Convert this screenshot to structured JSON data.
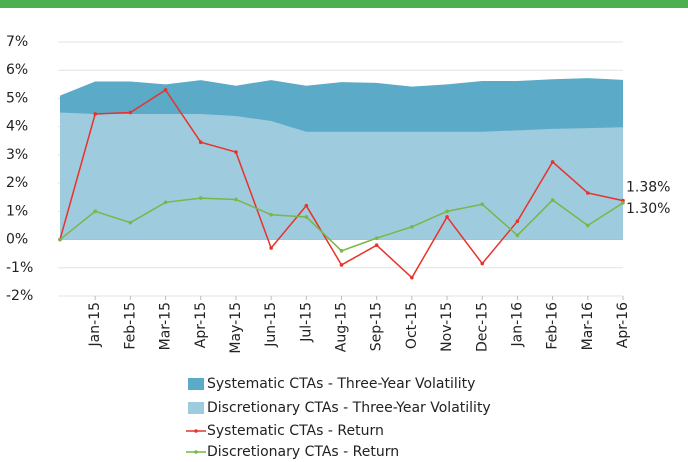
{
  "chart_data": {
    "type": "line",
    "categories": [
      null,
      "Jan-15",
      "Feb-15",
      "Mar-15",
      "Apr-15",
      "May-15",
      "Jun-15",
      "Jul-15",
      "Aug-15",
      "Sep-15",
      "Oct-15",
      "Nov-15",
      "Dec-15",
      "Jan-16",
      "Feb-16",
      "Mar-16",
      "Apr-16"
    ],
    "ylim": [
      -2,
      7
    ],
    "yticks": [
      {
        "value": -2,
        "label": "-2%"
      },
      {
        "value": -1,
        "label": "-1%"
      },
      {
        "value": 0,
        "label": "0%"
      },
      {
        "value": 1,
        "label": "1%"
      },
      {
        "value": 2,
        "label": "2%"
      },
      {
        "value": 3,
        "label": "3%"
      },
      {
        "value": 4,
        "label": "4%"
      },
      {
        "value": 5,
        "label": "5%"
      },
      {
        "value": 6,
        "label": "6%"
      },
      {
        "value": 7,
        "label": "7%"
      }
    ],
    "grid": true,
    "legend": "bottom",
    "series": [
      {
        "name": "Systematic CTAs - Three-Year Volatility",
        "type": "area",
        "color": "#5aaac8",
        "values": [
          5.1,
          5.6,
          5.6,
          5.5,
          5.65,
          5.45,
          5.65,
          5.45,
          5.58,
          5.55,
          5.42,
          5.5,
          5.62,
          5.62,
          5.68,
          5.72,
          5.66
        ]
      },
      {
        "name": "Discretionary CTAs - Three-Year Volatility",
        "type": "area",
        "color": "#9ecbde",
        "values": [
          4.5,
          4.45,
          4.45,
          4.45,
          4.45,
          4.38,
          4.2,
          3.82,
          3.82,
          3.82,
          3.82,
          3.82,
          3.82,
          3.87,
          3.92,
          3.95,
          3.98
        ]
      },
      {
        "name": "Systematic CTAs - Return",
        "type": "line",
        "color": "#e8322a",
        "values": [
          0,
          4.45,
          4.5,
          5.3,
          3.45,
          3.1,
          -0.3,
          1.2,
          -0.9,
          -0.2,
          -1.35,
          0.8,
          -0.85,
          0.65,
          2.75,
          1.65,
          1.38
        ],
        "value_labels": [
          null,
          null,
          null,
          null,
          null,
          null,
          null,
          null,
          null,
          null,
          null,
          null,
          null,
          null,
          null,
          null,
          "1.38%"
        ]
      },
      {
        "name": "Discretionary CTAs - Return",
        "type": "line",
        "color": "#7ab648",
        "values": [
          0,
          1.0,
          0.6,
          1.32,
          1.47,
          1.42,
          0.88,
          0.8,
          -0.4,
          0.05,
          0.45,
          1.0,
          1.25,
          0.15,
          1.4,
          0.5,
          1.3
        ],
        "value_labels": [
          null,
          null,
          null,
          null,
          null,
          null,
          null,
          null,
          null,
          null,
          null,
          null,
          null,
          null,
          null,
          null,
          "1.30%"
        ]
      }
    ]
  }
}
